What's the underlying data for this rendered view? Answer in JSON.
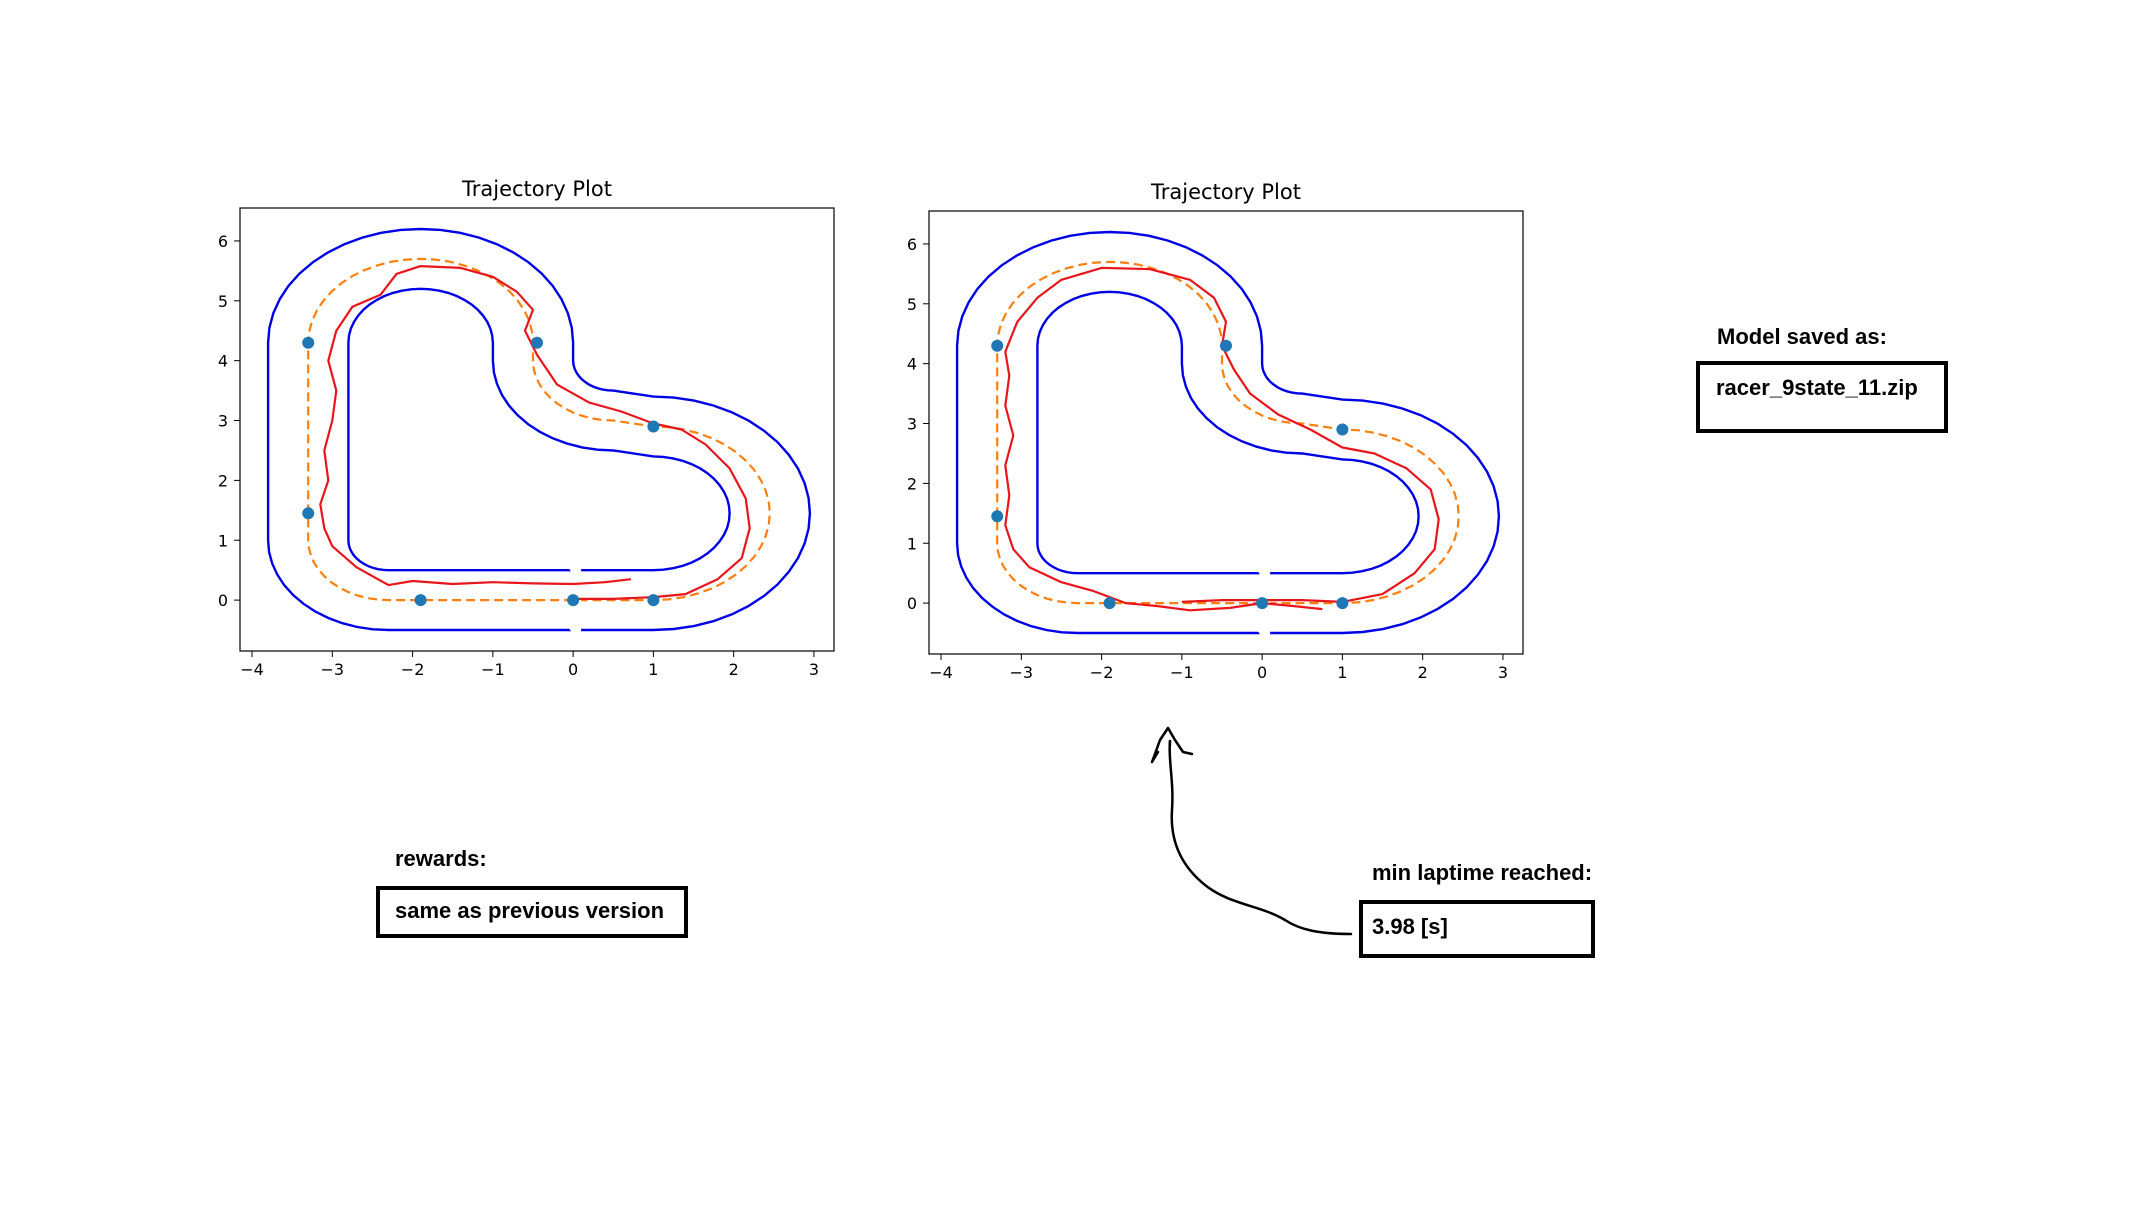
{
  "colors": {
    "track": "#0000e6",
    "reference": "#ff7f0e",
    "trajectory": "#e8151b",
    "waypoint": "#1f77b4"
  },
  "chart_data": [
    {
      "type": "line",
      "title": "Trajectory Plot",
      "xlim": [
        -4.15,
        3.25
      ],
      "ylim": [
        -0.85,
        6.55
      ],
      "xticks": [
        -4,
        -3,
        -2,
        -1,
        0,
        1,
        2,
        3
      ],
      "yticks": [
        0,
        1,
        2,
        3,
        4,
        5,
        6
      ],
      "grid": false,
      "waypoints": [
        [
          -3.3,
          4.3
        ],
        [
          -3.3,
          1.45
        ],
        [
          -1.9,
          0.0
        ],
        [
          0.0,
          0.0
        ],
        [
          1.0,
          0.0
        ],
        [
          1.0,
          2.9
        ],
        [
          -0.45,
          4.3
        ]
      ],
      "trajectory": [
        [
          0.72,
          0.35
        ],
        [
          0.4,
          0.3
        ],
        [
          0.0,
          0.27
        ],
        [
          -0.5,
          0.28
        ],
        [
          -1.0,
          0.3
        ],
        [
          -1.5,
          0.27
        ],
        [
          -2.0,
          0.32
        ],
        [
          -2.3,
          0.25
        ],
        [
          -2.7,
          0.55
        ],
        [
          -3.0,
          0.9
        ],
        [
          -3.1,
          1.2
        ],
        [
          -3.15,
          1.6
        ],
        [
          -3.05,
          2.0
        ],
        [
          -3.1,
          2.5
        ],
        [
          -3.0,
          3.0
        ],
        [
          -2.95,
          3.5
        ],
        [
          -3.05,
          4.0
        ],
        [
          -2.95,
          4.5
        ],
        [
          -2.75,
          4.9
        ],
        [
          -2.4,
          5.1
        ],
        [
          -2.2,
          5.45
        ],
        [
          -1.9,
          5.58
        ],
        [
          -1.4,
          5.55
        ],
        [
          -1.0,
          5.4
        ],
        [
          -0.7,
          5.15
        ],
        [
          -0.5,
          4.85
        ],
        [
          -0.6,
          4.5
        ],
        [
          -0.45,
          4.1
        ],
        [
          -0.2,
          3.6
        ],
        [
          0.2,
          3.3
        ],
        [
          0.6,
          3.15
        ],
        [
          1.0,
          2.95
        ],
        [
          1.35,
          2.85
        ],
        [
          1.65,
          2.6
        ],
        [
          1.95,
          2.2
        ],
        [
          2.15,
          1.7
        ],
        [
          2.2,
          1.2
        ],
        [
          2.1,
          0.7
        ],
        [
          1.8,
          0.35
        ],
        [
          1.4,
          0.1
        ],
        [
          1.0,
          0.05
        ],
        [
          0.5,
          0.02
        ],
        [
          0.0,
          0.02
        ]
      ]
    },
    {
      "type": "line",
      "title": "Trajectory Plot",
      "xlim": [
        -4.15,
        3.25
      ],
      "ylim": [
        -0.85,
        6.55
      ],
      "xticks": [
        -4,
        -3,
        -2,
        -1,
        0,
        1,
        2,
        3
      ],
      "yticks": [
        0,
        1,
        2,
        3,
        4,
        5,
        6
      ],
      "grid": false,
      "waypoints": [
        [
          -3.3,
          4.3
        ],
        [
          -3.3,
          1.45
        ],
        [
          -1.9,
          0.0
        ],
        [
          0.0,
          0.0
        ],
        [
          1.0,
          0.0
        ],
        [
          1.0,
          2.9
        ],
        [
          -0.45,
          4.3
        ]
      ],
      "trajectory": [
        [
          0.75,
          -0.1
        ],
        [
          0.4,
          -0.05
        ],
        [
          0.0,
          0.0
        ],
        [
          -0.4,
          -0.08
        ],
        [
          -0.9,
          -0.12
        ],
        [
          -1.3,
          -0.05
        ],
        [
          -1.7,
          0.0
        ],
        [
          -2.1,
          0.2
        ],
        [
          -2.5,
          0.35
        ],
        [
          -2.9,
          0.6
        ],
        [
          -3.1,
          0.9
        ],
        [
          -3.2,
          1.3
        ],
        [
          -3.15,
          1.8
        ],
        [
          -3.2,
          2.3
        ],
        [
          -3.1,
          2.8
        ],
        [
          -3.2,
          3.3
        ],
        [
          -3.15,
          3.8
        ],
        [
          -3.2,
          4.2
        ],
        [
          -3.05,
          4.7
        ],
        [
          -2.8,
          5.1
        ],
        [
          -2.5,
          5.4
        ],
        [
          -2.0,
          5.6
        ],
        [
          -1.4,
          5.58
        ],
        [
          -0.9,
          5.4
        ],
        [
          -0.6,
          5.1
        ],
        [
          -0.45,
          4.7
        ],
        [
          -0.5,
          4.3
        ],
        [
          -0.35,
          3.9
        ],
        [
          -0.15,
          3.5
        ],
        [
          0.2,
          3.15
        ],
        [
          0.6,
          2.9
        ],
        [
          1.0,
          2.6
        ],
        [
          1.4,
          2.5
        ],
        [
          1.8,
          2.25
        ],
        [
          2.1,
          1.9
        ],
        [
          2.2,
          1.4
        ],
        [
          2.15,
          0.9
        ],
        [
          1.9,
          0.5
        ],
        [
          1.5,
          0.15
        ],
        [
          1.0,
          0.02
        ],
        [
          0.5,
          0.05
        ],
        [
          0.0,
          0.05
        ],
        [
          -0.5,
          0.05
        ],
        [
          -1.0,
          0.02
        ]
      ]
    }
  ],
  "notes": {
    "model_label": "Model saved as:",
    "model_value": "racer_9state_11.zip",
    "rewards_label": "rewards:",
    "rewards_value": "same as previous version",
    "laptime_label": "min laptime reached:",
    "laptime_value": "3.98 [s]"
  }
}
